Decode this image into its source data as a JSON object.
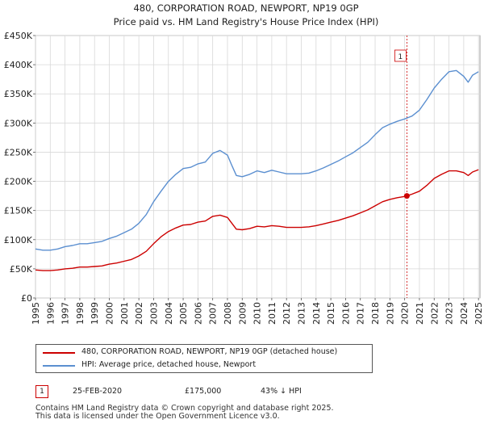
{
  "chart_data": {
    "type": "line",
    "title": "480, CORPORATION ROAD, NEWPORT, NP19 0GP",
    "subtitle": "Price paid vs. HM Land Registry's House Price Index (HPI)",
    "xlabel": "",
    "ylabel": "",
    "xlim": [
      1995,
      2025.1
    ],
    "ylim": [
      0,
      450000
    ],
    "y_ticks": [
      0,
      50000,
      100000,
      150000,
      200000,
      250000,
      300000,
      350000,
      400000,
      450000
    ],
    "y_tick_labels": [
      "£0",
      "£50K",
      "£100K",
      "£150K",
      "£200K",
      "£250K",
      "£300K",
      "£350K",
      "£400K",
      "£450K"
    ],
    "x_ticks": [
      1995,
      1996,
      1997,
      1998,
      1999,
      2000,
      2001,
      2002,
      2003,
      2004,
      2005,
      2006,
      2007,
      2008,
      2009,
      2010,
      2011,
      2012,
      2013,
      2014,
      2015,
      2016,
      2017,
      2018,
      2019,
      2020,
      2021,
      2022,
      2023,
      2024,
      2025
    ],
    "x_tick_labels": [
      "1995",
      "1996",
      "1997",
      "1998",
      "1999",
      "2000",
      "2001",
      "2002",
      "2003",
      "2004",
      "2005",
      "2006",
      "2007",
      "2008",
      "2009",
      "2010",
      "2011",
      "2012",
      "2013",
      "2014",
      "2015",
      "2016",
      "2017",
      "2018",
      "2019",
      "2020",
      "2021",
      "2022",
      "2023",
      "2024",
      "2025"
    ],
    "grid": true,
    "series": [
      {
        "name": "480, CORPORATION ROAD, NEWPORT, NP19 0GP (detached house)",
        "color": "#cc0000",
        "x": [
          1995,
          1995.5,
          1996,
          1996.5,
          1997,
          1997.5,
          1998,
          1998.5,
          1999,
          1999.5,
          2000,
          2000.5,
          2001,
          2001.5,
          2002,
          2002.5,
          2003,
          2003.5,
          2004,
          2004.5,
          2005,
          2005.5,
          2006,
          2006.5,
          2007,
          2007.5,
          2008,
          2008.3,
          2008.6,
          2009,
          2009.5,
          2010,
          2010.5,
          2011,
          2011.5,
          2012,
          2012.5,
          2013,
          2013.5,
          2014,
          2014.5,
          2015,
          2015.5,
          2016,
          2016.5,
          2017,
          2017.5,
          2018,
          2018.5,
          2019,
          2019.5,
          2020,
          2020.15,
          2020.5,
          2021,
          2021.5,
          2022,
          2022.5,
          2023,
          2023.5,
          2024,
          2024.3,
          2024.6,
          2025
        ],
        "values": [
          48000,
          47000,
          47000,
          48000,
          50000,
          51000,
          53000,
          53000,
          54000,
          55000,
          58000,
          60000,
          63000,
          66000,
          72000,
          80000,
          93000,
          105000,
          114000,
          120000,
          125000,
          126000,
          130000,
          132000,
          140000,
          142000,
          138000,
          128000,
          118000,
          117000,
          119000,
          123000,
          122000,
          124000,
          123000,
          121000,
          121000,
          121000,
          122000,
          124000,
          127000,
          130000,
          133000,
          137000,
          141000,
          146000,
          151000,
          158000,
          165000,
          169000,
          172000,
          174000,
          175000,
          178000,
          183000,
          193000,
          205000,
          212000,
          218000,
          218000,
          215000,
          210000,
          216000,
          220000
        ]
      },
      {
        "name": "HPI: Average price, detached house, Newport",
        "color": "#5b8fd0",
        "x": [
          1995,
          1995.5,
          1996,
          1996.5,
          1997,
          1997.5,
          1998,
          1998.5,
          1999,
          1999.5,
          2000,
          2000.5,
          2001,
          2001.5,
          2002,
          2002.5,
          2003,
          2003.5,
          2004,
          2004.5,
          2005,
          2005.5,
          2006,
          2006.5,
          2007,
          2007.5,
          2008,
          2008.3,
          2008.6,
          2009,
          2009.5,
          2010,
          2010.5,
          2011,
          2011.5,
          2012,
          2012.5,
          2013,
          2013.5,
          2014,
          2014.5,
          2015,
          2015.5,
          2016,
          2016.5,
          2017,
          2017.5,
          2018,
          2018.5,
          2019,
          2019.5,
          2020,
          2020.5,
          2021,
          2021.5,
          2022,
          2022.5,
          2023,
          2023.5,
          2024,
          2024.3,
          2024.6,
          2025
        ],
        "values": [
          84000,
          82000,
          82000,
          84000,
          88000,
          90000,
          93000,
          93000,
          95000,
          97000,
          102000,
          106000,
          112000,
          118000,
          128000,
          143000,
          165000,
          183000,
          200000,
          212000,
          222000,
          224000,
          230000,
          233000,
          248000,
          253000,
          245000,
          227000,
          210000,
          208000,
          212000,
          218000,
          215000,
          219000,
          216000,
          213000,
          213000,
          213000,
          214000,
          218000,
          223000,
          229000,
          235000,
          242000,
          249000,
          258000,
          267000,
          280000,
          292000,
          298000,
          303000,
          307000,
          312000,
          322000,
          340000,
          360000,
          375000,
          388000,
          390000,
          380000,
          370000,
          382000,
          388000
        ]
      }
    ],
    "markers": [
      {
        "label": "1",
        "x": 2020.15,
        "y": 175000,
        "series": 0
      }
    ]
  },
  "legend": {
    "entries": [
      {
        "label": "480, CORPORATION ROAD, NEWPORT, NP19 0GP (detached house)",
        "color": "#cc0000"
      },
      {
        "label": "HPI: Average price, detached house, Newport",
        "color": "#5b8fd0"
      }
    ]
  },
  "sale": {
    "badge": "1",
    "date": "25-FEB-2020",
    "price": "£175,000",
    "hpi": "43% ↓ HPI"
  },
  "footer": {
    "line1": "Contains HM Land Registry data © Crown copyright and database right 2025.",
    "line2": "This data is licensed under the Open Government Licence v3.0."
  }
}
